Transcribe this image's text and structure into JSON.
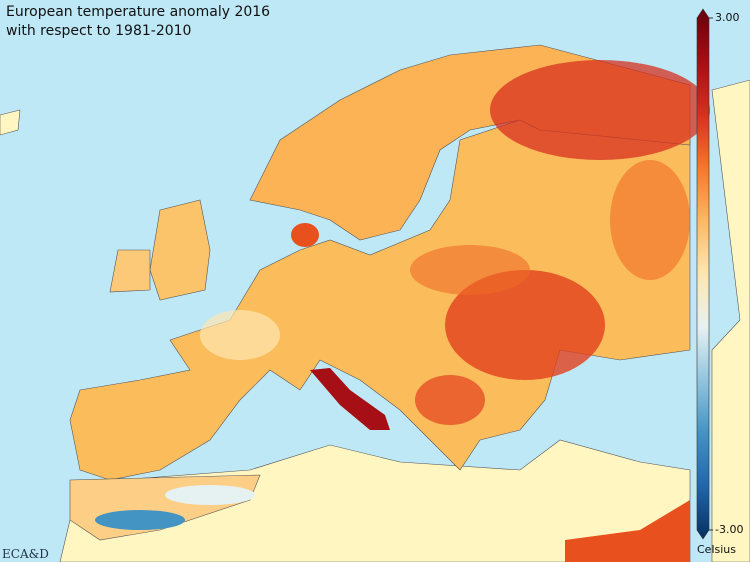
{
  "map": {
    "title": [
      "European temperature anomaly 2016",
      "with respect to 1981-2010"
    ],
    "colorbar": {
      "range": [
        -3,
        3
      ],
      "ticks": [
        {
          "value": 3,
          "label": "3.00"
        },
        {
          "value": -3,
          "label": "-3.00"
        }
      ],
      "unit_label": "Celsius",
      "colors": [
        "#053061",
        "#2166ac",
        "#4393c3",
        "#92c5de",
        "#e6f1f2",
        "#fde7b0",
        "#fdb863",
        "#f4782a",
        "#d7301f",
        "#a50f15",
        "#67000d"
      ]
    },
    "logo": "ECA&D"
  }
}
